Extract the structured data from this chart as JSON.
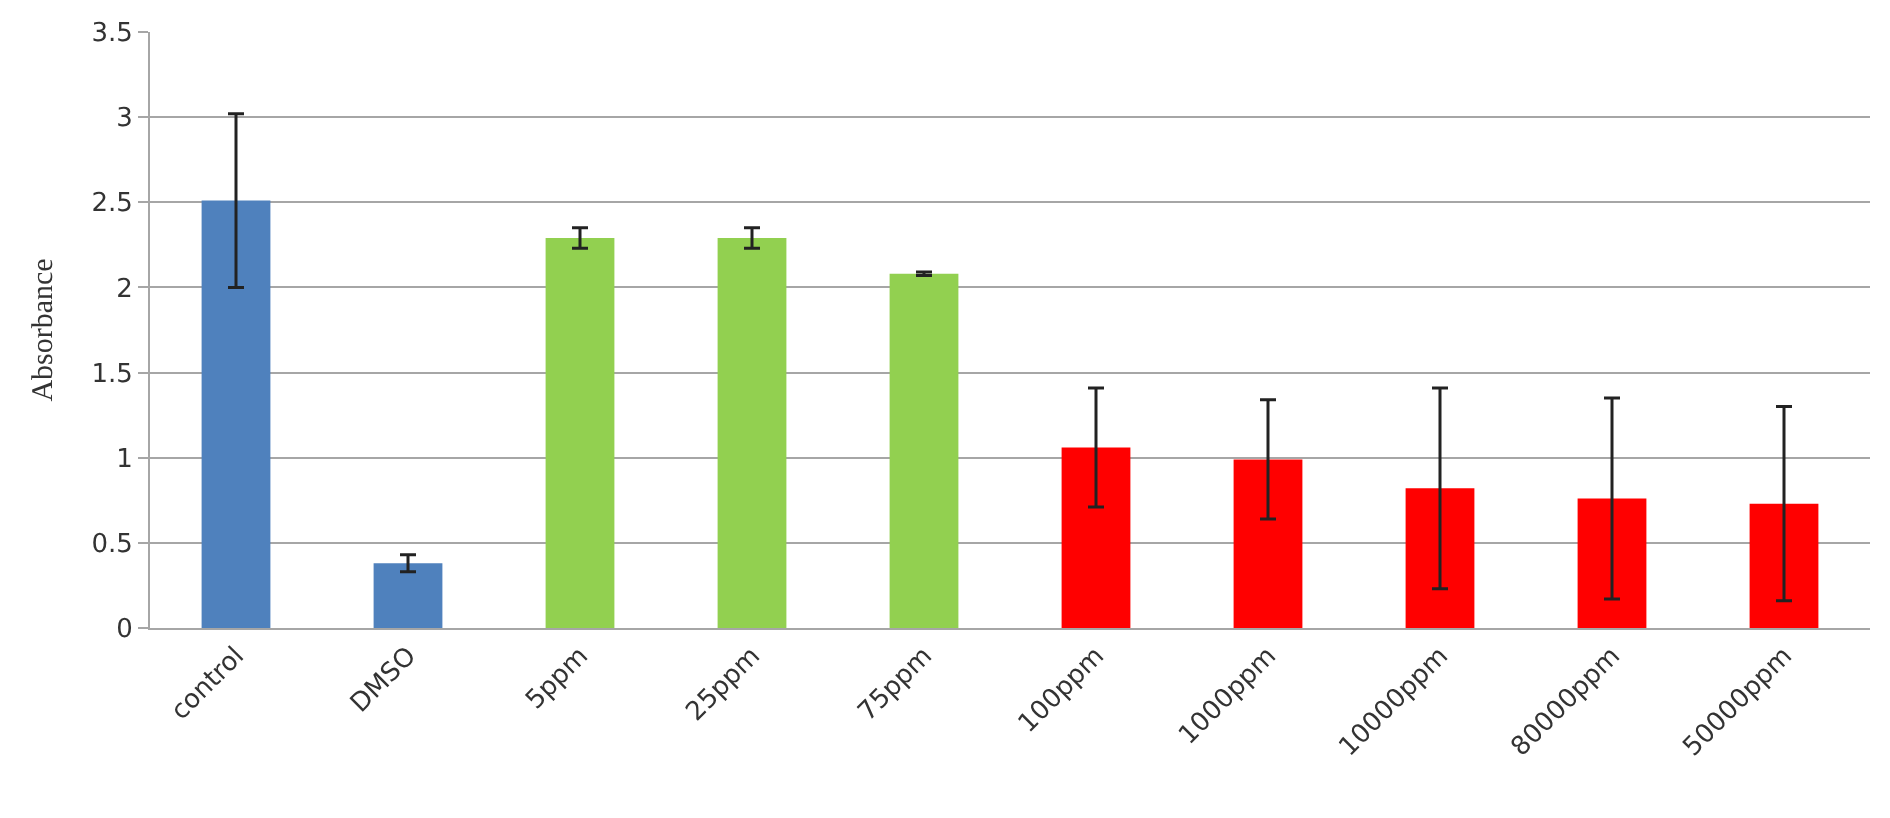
{
  "chart_data": {
    "type": "bar",
    "ylabel": "Absorbance",
    "categories": [
      "control",
      "DMSO",
      "5ppm",
      "25ppm",
      "75ppm",
      "100ppm",
      "1000ppm",
      "10000ppm",
      "80000ppm",
      "50000ppm"
    ],
    "values": [
      2.51,
      0.38,
      2.29,
      2.29,
      2.08,
      1.06,
      0.99,
      0.82,
      0.76,
      0.73
    ],
    "errors": [
      0.51,
      0.05,
      0.06,
      0.06,
      0.01,
      0.35,
      0.35,
      0.59,
      0.59,
      0.57
    ],
    "colors": [
      "#4f81bd",
      "#4f81bd",
      "#92d050",
      "#92d050",
      "#92d050",
      "#ff0000",
      "#ff0000",
      "#ff0000",
      "#ff0000",
      "#ff0000"
    ],
    "ylim": [
      0,
      3.5
    ],
    "yticks": [
      0,
      0.5,
      1,
      1.5,
      2,
      2.5,
      3,
      3.5
    ],
    "grid": "y",
    "legend": false
  }
}
